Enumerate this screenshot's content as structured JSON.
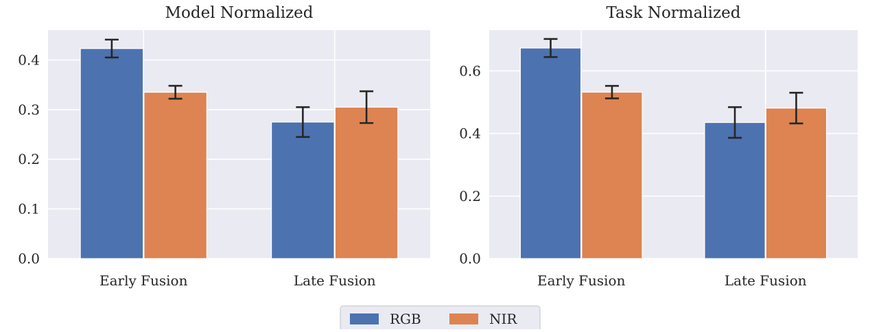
{
  "chart_data": [
    {
      "type": "bar",
      "title": "Model Normalized",
      "xlabel": "",
      "ylabel": "",
      "categories": [
        "Early Fusion",
        "Late Fusion"
      ],
      "ylim": [
        0,
        0.46
      ],
      "yticks": [
        0.0,
        0.1,
        0.2,
        0.3,
        0.4
      ],
      "ytick_labels": [
        "0.0",
        "0.1",
        "0.2",
        "0.3",
        "0.4"
      ],
      "grid": true,
      "series": [
        {
          "name": "RGB",
          "values": [
            0.423,
            0.275
          ],
          "error": [
            0.018,
            0.03
          ]
        },
        {
          "name": "NIR",
          "values": [
            0.335,
            0.305
          ],
          "error": [
            0.013,
            0.032
          ]
        }
      ]
    },
    {
      "type": "bar",
      "title": "Task Normalized",
      "xlabel": "",
      "ylabel": "",
      "categories": [
        "Early Fusion",
        "Late Fusion"
      ],
      "ylim": [
        0,
        0.73
      ],
      "yticks": [
        0.0,
        0.2,
        0.4,
        0.6
      ],
      "ytick_labels": [
        "0.0",
        "0.2",
        "0.4",
        "0.6"
      ],
      "grid": true,
      "series": [
        {
          "name": "RGB",
          "values": [
            0.673,
            0.435
          ],
          "error": [
            0.029,
            0.049
          ]
        },
        {
          "name": "NIR",
          "values": [
            0.532,
            0.481
          ],
          "error": [
            0.02,
            0.049
          ]
        }
      ]
    }
  ],
  "legend": {
    "placement": "bottom-center",
    "items": [
      "RGB",
      "NIR"
    ]
  },
  "colors": {
    "RGB": "#4c72b0",
    "NIR": "#dd8452",
    "plot_background": "#eaeaf2",
    "grid": "#ffffff",
    "error_bar": "#262626"
  }
}
